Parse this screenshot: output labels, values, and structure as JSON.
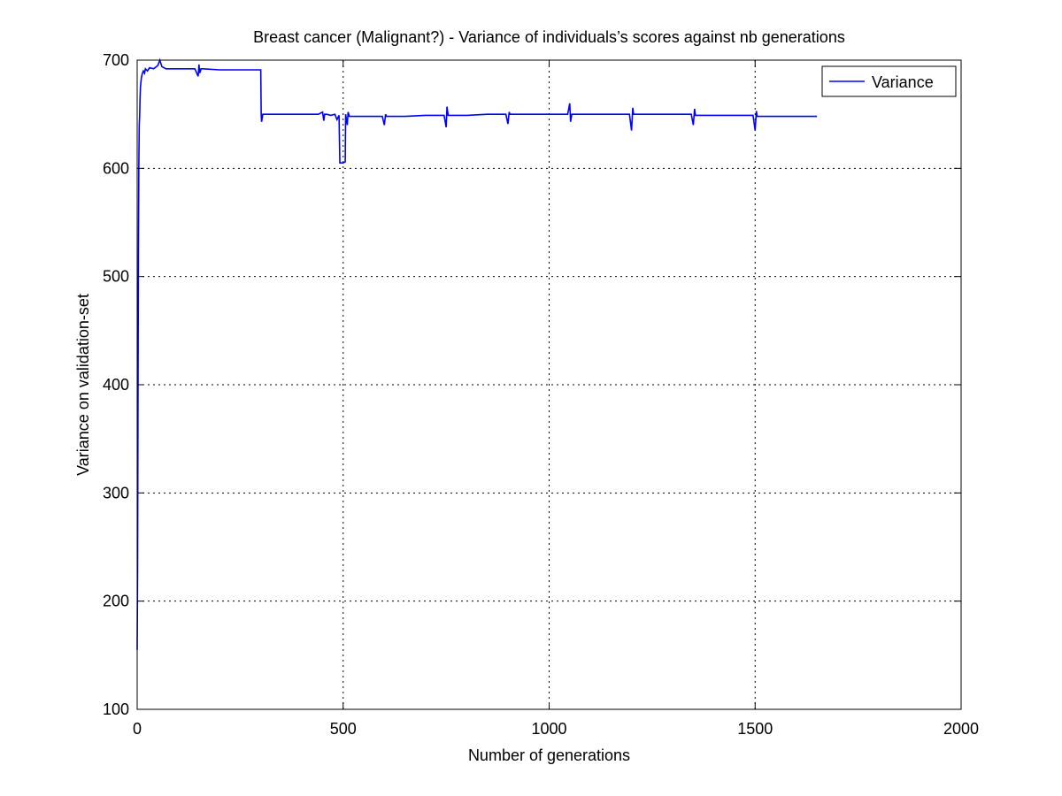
{
  "chart_data": {
    "type": "line",
    "title": "Breast cancer (Malignant?) - Variance of individuals’s scores against nb generations",
    "xlabel": "Number of generations",
    "ylabel": "Variance on validation-set",
    "xlim": [
      0,
      2000
    ],
    "ylim": [
      100,
      700
    ],
    "xticks": [
      0,
      500,
      1000,
      1500,
      2000
    ],
    "yticks": [
      100,
      200,
      300,
      400,
      500,
      600,
      700
    ],
    "grid": true,
    "legend_position": "top-right",
    "series": [
      {
        "name": "Variance",
        "color": "#0000ff",
        "x": [
          0,
          1,
          2,
          3,
          4,
          5,
          6,
          7,
          8,
          10,
          12,
          15,
          18,
          20,
          25,
          30,
          40,
          50,
          55,
          60,
          70,
          100,
          140,
          148,
          150,
          152,
          155,
          160,
          200,
          250,
          299,
          300,
          301,
          302,
          305,
          350,
          400,
          440,
          450,
          453,
          455,
          460,
          470,
          480,
          485,
          490,
          492,
          495,
          500,
          505,
          506,
          510,
          512,
          515,
          520,
          550,
          595,
          600,
          603,
          605,
          650,
          700,
          745,
          750,
          752,
          755,
          800,
          850,
          895,
          900,
          903,
          905,
          950,
          1000,
          1045,
          1050,
          1052,
          1055,
          1100,
          1150,
          1195,
          1200,
          1203,
          1205,
          1250,
          1300,
          1345,
          1350,
          1353,
          1355,
          1400,
          1450,
          1495,
          1500,
          1503,
          1505,
          1550,
          1600,
          1650
        ],
        "y": [
          155,
          230,
          380,
          520,
          600,
          640,
          648,
          665,
          675,
          683,
          687,
          690,
          688,
          692,
          690,
          693,
          692,
          695,
          700,
          694,
          692,
          692,
          692,
          685,
          696,
          688,
          692,
          692,
          691,
          691,
          691,
          691,
          650,
          643,
          650,
          650,
          650,
          650,
          652,
          644,
          650,
          650,
          649,
          650,
          645,
          649,
          605,
          605,
          605,
          606,
          650,
          640,
          652,
          648,
          648,
          648,
          648,
          640,
          650,
          648,
          648,
          649,
          649,
          638,
          657,
          649,
          649,
          650,
          650,
          641,
          652,
          650,
          650,
          650,
          650,
          660,
          643,
          650,
          650,
          650,
          650,
          635,
          656,
          650,
          650,
          650,
          650,
          640,
          655,
          649,
          649,
          649,
          649,
          635,
          653,
          648,
          648,
          648,
          648
        ]
      }
    ]
  }
}
